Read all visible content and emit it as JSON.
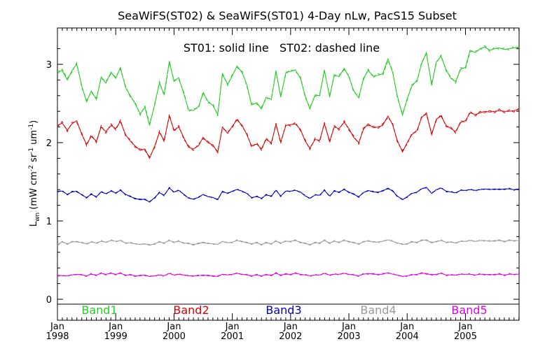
{
  "chart_data": {
    "type": "line",
    "title": "SeaWiFS(ST02) & SeaWiFS(ST01) 4-Day nLw, PacS15 Subset",
    "annotation": "ST01: solid line   ST02: dashed line",
    "ylabel": {
      "base": "L",
      "sub": "wn",
      "units": "(mW cm",
      "e1": "-2",
      "mid1": " sr",
      "e2": "-1",
      "mid2": " um",
      "e3": "-1",
      "close": ")"
    },
    "ylim": [
      -0.2,
      3.45
    ],
    "yticks": [
      0,
      1,
      2,
      3
    ],
    "x_range": [
      1998.0,
      2005.92
    ],
    "year_ticks": [
      {
        "x": 1998,
        "month": "Jan",
        "year": "1998"
      },
      {
        "x": 1999,
        "month": "Jan",
        "year": "1999"
      },
      {
        "x": 2000,
        "month": "Jan",
        "year": "2000"
      },
      {
        "x": 2001,
        "month": "Jan",
        "year": "2001"
      },
      {
        "x": 2002,
        "month": "Jan",
        "year": "2002"
      },
      {
        "x": 2003,
        "month": "Jan",
        "year": "2003"
      },
      {
        "x": 2004,
        "month": "Jan",
        "year": "2004"
      },
      {
        "x": 2005,
        "month": "Jan",
        "year": "2005"
      }
    ],
    "x": [
      1998.0,
      1998.08,
      1998.17,
      1998.25,
      1998.33,
      1998.42,
      1998.5,
      1998.58,
      1998.67,
      1998.75,
      1998.83,
      1998.92,
      1999.0,
      1999.08,
      1999.17,
      1999.25,
      1999.33,
      1999.42,
      1999.5,
      1999.58,
      1999.67,
      1999.75,
      1999.83,
      1999.92,
      2000.0,
      2000.08,
      2000.17,
      2000.25,
      2000.33,
      2000.42,
      2000.5,
      2000.58,
      2000.67,
      2000.75,
      2000.83,
      2000.92,
      2001.0,
      2001.08,
      2001.17,
      2001.25,
      2001.33,
      2001.42,
      2001.5,
      2001.58,
      2001.67,
      2001.75,
      2001.83,
      2001.92,
      2002.0,
      2002.08,
      2002.17,
      2002.25,
      2002.33,
      2002.42,
      2002.5,
      2002.58,
      2002.67,
      2002.75,
      2002.83,
      2002.92,
      2003.0,
      2003.08,
      2003.17,
      2003.25,
      2003.33,
      2003.42,
      2003.5,
      2003.58,
      2003.67,
      2003.75,
      2003.83,
      2003.92,
      2004.0,
      2004.08,
      2004.17,
      2004.25,
      2004.33,
      2004.42,
      2004.5,
      2004.58,
      2004.67,
      2004.75,
      2004.83,
      2004.92,
      2005.0,
      2005.08,
      2005.17,
      2005.25,
      2005.33,
      2005.42,
      2005.5,
      2005.58,
      2005.67,
      2005.75,
      2005.83,
      2005.92
    ],
    "series": [
      {
        "name": "Band1",
        "color": "#22cc22",
        "st01": [
          2.91,
          2.92,
          2.8,
          2.92,
          3.0,
          2.72,
          2.52,
          2.66,
          2.55,
          2.84,
          2.76,
          2.9,
          2.82,
          2.96,
          2.7,
          2.6,
          2.5,
          2.37,
          2.45,
          2.22,
          2.5,
          2.76,
          2.62,
          3.04,
          2.78,
          2.83,
          2.62,
          2.42,
          2.41,
          2.46,
          2.63,
          2.53,
          2.47,
          2.36,
          2.87,
          2.75,
          2.85,
          2.98,
          2.89,
          2.74,
          2.48,
          2.51,
          2.43,
          2.58,
          2.55,
          2.92,
          2.58,
          2.9,
          2.91,
          2.93,
          2.82,
          2.6,
          2.43,
          2.61,
          2.6,
          2.93,
          2.58,
          2.87,
          2.84,
          2.95,
          2.84,
          2.67,
          2.57,
          2.82,
          2.92,
          2.85,
          2.86,
          2.88,
          3.07,
          2.9,
          2.6,
          2.35,
          2.56,
          2.72,
          2.8,
          3.01,
          3.15,
          2.73,
          3.03,
          3.1,
          2.93,
          2.82,
          2.78,
          2.94,
          2.96,
          3.18,
          3.15,
          3.2,
          3.22,
          3.18,
          3.2,
          3.21,
          3.19,
          3.2,
          3.21,
          3.22
        ],
        "st02": [
          2.88,
          2.94,
          2.82,
          2.9,
          3.02,
          2.7,
          2.54,
          2.64,
          2.57,
          2.82,
          2.78,
          2.88,
          2.84,
          2.94,
          2.72,
          2.58,
          2.52,
          2.35,
          2.47,
          2.24,
          2.48,
          2.78,
          2.6,
          3.02,
          2.8,
          2.81,
          2.64,
          2.4,
          2.43,
          2.44,
          2.65,
          2.51,
          2.49,
          2.34,
          2.89,
          2.73,
          2.87,
          2.96,
          2.91,
          2.72,
          2.5,
          2.49,
          2.45,
          2.56,
          2.57,
          2.9,
          2.6,
          2.88,
          2.93,
          2.91,
          2.84,
          2.58,
          2.45,
          2.59,
          2.62,
          2.91,
          2.6,
          2.85,
          2.86,
          2.93,
          2.86,
          2.65,
          2.59,
          2.8,
          2.94,
          2.83,
          2.88,
          2.86,
          3.05,
          2.92,
          2.58,
          2.37,
          2.54,
          2.74,
          2.78,
          3.03,
          3.13,
          2.75,
          3.01,
          3.12,
          2.91,
          2.84,
          2.76,
          2.96,
          2.94,
          3.16,
          3.17,
          3.18,
          3.24,
          3.16,
          3.22,
          3.19,
          3.21,
          3.18,
          3.23,
          3.2
        ]
      },
      {
        "name": "Band2",
        "color": "#dd0000",
        "st01": [
          2.22,
          2.25,
          2.16,
          2.24,
          2.28,
          2.1,
          1.98,
          2.08,
          2.02,
          2.2,
          2.14,
          2.22,
          2.18,
          2.27,
          2.1,
          2.02,
          1.96,
          1.9,
          1.92,
          1.8,
          1.96,
          2.13,
          2.03,
          2.34,
          2.16,
          2.2,
          2.06,
          1.94,
          1.92,
          1.96,
          2.07,
          2.0,
          1.97,
          1.87,
          2.2,
          2.12,
          2.21,
          2.29,
          2.22,
          2.1,
          1.96,
          1.98,
          1.92,
          2.04,
          2.0,
          2.23,
          2.01,
          2.22,
          2.23,
          2.24,
          2.17,
          2.02,
          1.93,
          2.04,
          2.03,
          2.24,
          2.02,
          2.2,
          2.18,
          2.26,
          2.18,
          2.07,
          2.0,
          2.17,
          2.24,
          2.19,
          2.2,
          2.22,
          2.34,
          2.23,
          2.03,
          1.88,
          2.0,
          2.1,
          2.16,
          2.32,
          2.38,
          2.1,
          2.3,
          2.34,
          2.22,
          2.18,
          2.14,
          2.26,
          2.28,
          2.38,
          2.36,
          2.38,
          2.4,
          2.39,
          2.4,
          2.41,
          2.4,
          2.4,
          2.41,
          2.42
        ],
        "st02": [
          2.2,
          2.27,
          2.14,
          2.26,
          2.26,
          2.12,
          1.96,
          2.1,
          2.0,
          2.22,
          2.12,
          2.24,
          2.16,
          2.29,
          2.08,
          2.04,
          1.94,
          1.92,
          1.9,
          1.82,
          1.94,
          2.15,
          2.01,
          2.36,
          2.14,
          2.22,
          2.04,
          1.96,
          1.9,
          1.98,
          2.05,
          2.02,
          1.95,
          1.89,
          2.18,
          2.14,
          2.19,
          2.31,
          2.2,
          2.12,
          1.94,
          2.0,
          1.9,
          2.06,
          1.98,
          2.25,
          1.99,
          2.24,
          2.21,
          2.26,
          2.15,
          2.04,
          1.91,
          2.06,
          2.01,
          2.26,
          2.0,
          2.22,
          2.16,
          2.28,
          2.16,
          2.09,
          1.98,
          2.19,
          2.22,
          2.21,
          2.18,
          2.24,
          2.32,
          2.25,
          2.01,
          1.9,
          1.98,
          2.12,
          2.14,
          2.34,
          2.36,
          2.12,
          2.28,
          2.36,
          2.2,
          2.2,
          2.12,
          2.28,
          2.26,
          2.4,
          2.34,
          2.4,
          2.38,
          2.41,
          2.38,
          2.43,
          2.38,
          2.42,
          2.39,
          2.44
        ]
      },
      {
        "name": "Band3",
        "color": "#0000cc",
        "st01": [
          1.38,
          1.38,
          1.34,
          1.37,
          1.38,
          1.33,
          1.3,
          1.34,
          1.31,
          1.37,
          1.35,
          1.38,
          1.36,
          1.39,
          1.34,
          1.31,
          1.29,
          1.27,
          1.28,
          1.24,
          1.3,
          1.36,
          1.33,
          1.42,
          1.37,
          1.39,
          1.34,
          1.29,
          1.28,
          1.3,
          1.34,
          1.31,
          1.3,
          1.27,
          1.38,
          1.35,
          1.38,
          1.4,
          1.38,
          1.35,
          1.3,
          1.31,
          1.29,
          1.33,
          1.32,
          1.39,
          1.32,
          1.38,
          1.38,
          1.39,
          1.37,
          1.32,
          1.29,
          1.33,
          1.33,
          1.39,
          1.32,
          1.38,
          1.37,
          1.4,
          1.37,
          1.34,
          1.31,
          1.36,
          1.39,
          1.37,
          1.37,
          1.38,
          1.42,
          1.38,
          1.32,
          1.27,
          1.31,
          1.35,
          1.37,
          1.41,
          1.43,
          1.35,
          1.4,
          1.42,
          1.38,
          1.37,
          1.36,
          1.39,
          1.39,
          1.4,
          1.39,
          1.4,
          1.41,
          1.4,
          1.41,
          1.4,
          1.41,
          1.41,
          1.4,
          1.41
        ],
        "st02": [
          1.37,
          1.39,
          1.33,
          1.38,
          1.37,
          1.34,
          1.29,
          1.35,
          1.3,
          1.38,
          1.34,
          1.39,
          1.35,
          1.4,
          1.33,
          1.32,
          1.28,
          1.28,
          1.27,
          1.25,
          1.29,
          1.37,
          1.32,
          1.43,
          1.36,
          1.4,
          1.33,
          1.3,
          1.27,
          1.31,
          1.33,
          1.32,
          1.29,
          1.28,
          1.37,
          1.36,
          1.37,
          1.41,
          1.37,
          1.36,
          1.29,
          1.32,
          1.28,
          1.34,
          1.31,
          1.4,
          1.31,
          1.39,
          1.37,
          1.4,
          1.36,
          1.33,
          1.28,
          1.34,
          1.32,
          1.4,
          1.31,
          1.39,
          1.36,
          1.41,
          1.36,
          1.35,
          1.3,
          1.37,
          1.38,
          1.38,
          1.36,
          1.39,
          1.41,
          1.39,
          1.31,
          1.28,
          1.3,
          1.36,
          1.36,
          1.42,
          1.42,
          1.36,
          1.39,
          1.43,
          1.37,
          1.38,
          1.35,
          1.4,
          1.38,
          1.41,
          1.38,
          1.41,
          1.4,
          1.41,
          1.4,
          1.41,
          1.4,
          1.42,
          1.39,
          1.42
        ]
      },
      {
        "name": "Band4",
        "color": "#999999",
        "st01": [
          0.7,
          0.73,
          0.71,
          0.73,
          0.74,
          0.72,
          0.71,
          0.73,
          0.72,
          0.74,
          0.73,
          0.75,
          0.74,
          0.75,
          0.72,
          0.72,
          0.71,
          0.7,
          0.71,
          0.69,
          0.71,
          0.73,
          0.72,
          0.75,
          0.73,
          0.74,
          0.72,
          0.71,
          0.7,
          0.71,
          0.73,
          0.71,
          0.71,
          0.7,
          0.74,
          0.72,
          0.73,
          0.75,
          0.74,
          0.72,
          0.71,
          0.72,
          0.7,
          0.72,
          0.71,
          0.74,
          0.72,
          0.74,
          0.74,
          0.75,
          0.73,
          0.71,
          0.7,
          0.72,
          0.72,
          0.75,
          0.72,
          0.74,
          0.73,
          0.75,
          0.74,
          0.72,
          0.71,
          0.73,
          0.75,
          0.73,
          0.73,
          0.74,
          0.76,
          0.74,
          0.72,
          0.7,
          0.71,
          0.73,
          0.73,
          0.75,
          0.76,
          0.72,
          0.74,
          0.75,
          0.73,
          0.73,
          0.72,
          0.74,
          0.74,
          0.75,
          0.74,
          0.75,
          0.75,
          0.74,
          0.75,
          0.75,
          0.74,
          0.75,
          0.75,
          0.75
        ],
        "st02": [
          0.68,
          0.74,
          0.7,
          0.74,
          0.73,
          0.73,
          0.7,
          0.74,
          0.71,
          0.75,
          0.72,
          0.76,
          0.73,
          0.76,
          0.71,
          0.73,
          0.7,
          0.71,
          0.7,
          0.7,
          0.7,
          0.74,
          0.71,
          0.76,
          0.72,
          0.75,
          0.71,
          0.72,
          0.69,
          0.72,
          0.72,
          0.72,
          0.7,
          0.71,
          0.73,
          0.73,
          0.72,
          0.76,
          0.73,
          0.73,
          0.7,
          0.73,
          0.69,
          0.73,
          0.7,
          0.75,
          0.71,
          0.75,
          0.73,
          0.76,
          0.72,
          0.72,
          0.69,
          0.73,
          0.71,
          0.76,
          0.71,
          0.75,
          0.72,
          0.76,
          0.73,
          0.73,
          0.7,
          0.74,
          0.74,
          0.74,
          0.72,
          0.75,
          0.75,
          0.75,
          0.71,
          0.71,
          0.7,
          0.74,
          0.72,
          0.76,
          0.75,
          0.73,
          0.73,
          0.76,
          0.72,
          0.74,
          0.71,
          0.75,
          0.73,
          0.76,
          0.73,
          0.76,
          0.74,
          0.75,
          0.74,
          0.76,
          0.73,
          0.76,
          0.74,
          0.76
        ]
      },
      {
        "name": "Band5",
        "color": "#dd00dd",
        "st01": [
          0.31,
          0.3,
          0.3,
          0.31,
          0.32,
          0.31,
          0.3,
          0.32,
          0.31,
          0.33,
          0.32,
          0.33,
          0.32,
          0.33,
          0.31,
          0.31,
          0.3,
          0.3,
          0.31,
          0.29,
          0.3,
          0.31,
          0.3,
          0.33,
          0.31,
          0.32,
          0.31,
          0.3,
          0.3,
          0.3,
          0.31,
          0.3,
          0.3,
          0.29,
          0.32,
          0.31,
          0.32,
          0.33,
          0.32,
          0.31,
          0.3,
          0.31,
          0.3,
          0.31,
          0.31,
          0.33,
          0.31,
          0.32,
          0.32,
          0.33,
          0.32,
          0.31,
          0.3,
          0.31,
          0.31,
          0.33,
          0.31,
          0.32,
          0.32,
          0.33,
          0.32,
          0.31,
          0.3,
          0.32,
          0.33,
          0.32,
          0.32,
          0.32,
          0.34,
          0.32,
          0.31,
          0.29,
          0.3,
          0.31,
          0.32,
          0.33,
          0.33,
          0.31,
          0.32,
          0.33,
          0.31,
          0.31,
          0.31,
          0.32,
          0.32,
          0.32,
          0.31,
          0.32,
          0.32,
          0.31,
          0.32,
          0.32,
          0.31,
          0.32,
          0.32,
          0.32
        ],
        "st02": [
          0.29,
          0.31,
          0.29,
          0.32,
          0.31,
          0.32,
          0.29,
          0.33,
          0.3,
          0.34,
          0.31,
          0.34,
          0.31,
          0.34,
          0.3,
          0.32,
          0.29,
          0.31,
          0.3,
          0.3,
          0.29,
          0.32,
          0.29,
          0.34,
          0.3,
          0.33,
          0.3,
          0.31,
          0.29,
          0.31,
          0.3,
          0.31,
          0.29,
          0.3,
          0.31,
          0.32,
          0.31,
          0.34,
          0.31,
          0.32,
          0.29,
          0.32,
          0.29,
          0.32,
          0.3,
          0.34,
          0.3,
          0.33,
          0.31,
          0.34,
          0.31,
          0.32,
          0.29,
          0.32,
          0.3,
          0.34,
          0.3,
          0.33,
          0.31,
          0.34,
          0.31,
          0.32,
          0.29,
          0.33,
          0.32,
          0.33,
          0.31,
          0.33,
          0.33,
          0.33,
          0.3,
          0.3,
          0.29,
          0.32,
          0.31,
          0.34,
          0.32,
          0.32,
          0.31,
          0.34,
          0.3,
          0.32,
          0.3,
          0.33,
          0.31,
          0.33,
          0.3,
          0.33,
          0.31,
          0.32,
          0.31,
          0.33,
          0.3,
          0.33,
          0.31,
          0.33
        ]
      }
    ]
  }
}
